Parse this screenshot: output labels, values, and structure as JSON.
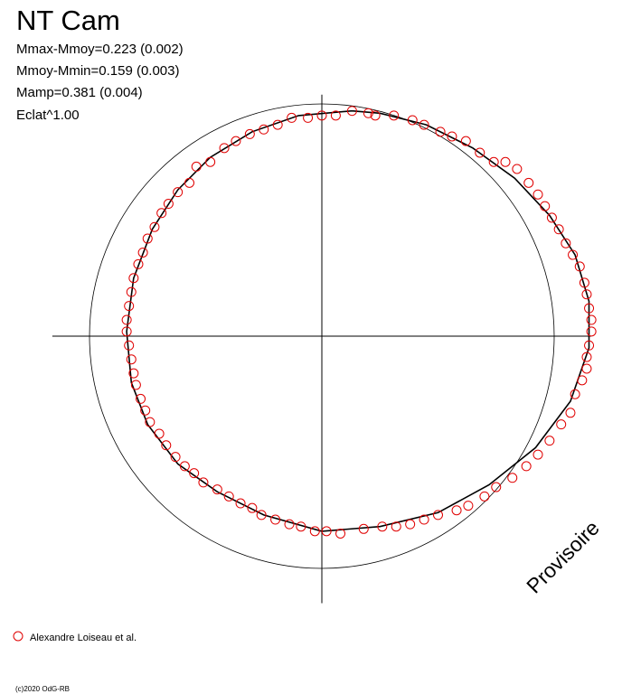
{
  "chart_data": {
    "type": "scatter",
    "title": "NT Cam",
    "annotations": [
      "Mmax-Mmoy=0.223 (0.002)",
      "Mmoy-Mmin=0.159 (0.003)",
      "Mamp=0.381 (0.004)",
      "Eclat^1.00"
    ],
    "watermark": "Provisoire",
    "footer": "(c)2020 OdG-RB",
    "xlim": [
      -1.16,
      1.16
    ],
    "ylim": [
      -1.15,
      1.04
    ],
    "reference_circle_radius": 1,
    "series": [
      {
        "name": "Alexandre Loiseau et al.",
        "color": "#e00000",
        "x": [
          0.13,
          0.06,
          0.0,
          -0.06,
          -0.13,
          -0.19,
          -0.25,
          -0.31,
          -0.37,
          -0.42,
          -0.48,
          -0.54,
          -0.57,
          -0.62,
          -0.66,
          -0.69,
          -0.72,
          -0.75,
          -0.77,
          -0.79,
          -0.81,
          -0.82,
          -0.83,
          -0.84,
          -0.84,
          -0.83,
          -0.82,
          -0.81,
          -0.8,
          -0.78,
          -0.76,
          -0.74,
          -0.7,
          -0.67,
          -0.63,
          -0.59,
          -0.55,
          -0.51,
          -0.45,
          -0.4,
          -0.35,
          -0.3,
          -0.26,
          -0.2,
          -0.14,
          -0.09,
          -0.03,
          0.02,
          0.08,
          0.18,
          0.26,
          0.32,
          0.38,
          0.44,
          0.5,
          0.58,
          0.63,
          0.7,
          0.75,
          0.82,
          0.88,
          0.93,
          0.98,
          1.03,
          1.07,
          1.09,
          1.12,
          1.14,
          1.14,
          1.15,
          1.16,
          1.16,
          1.15,
          1.14,
          1.13,
          1.11,
          1.08,
          1.05,
          1.02,
          0.99,
          0.96,
          0.93,
          0.89,
          0.84,
          0.79,
          0.74,
          0.68,
          0.62,
          0.56,
          0.51,
          0.44,
          0.39,
          0.31,
          0.23,
          0.2
        ],
        "y": [
          0.97,
          0.95,
          0.95,
          0.94,
          0.94,
          0.91,
          0.89,
          0.87,
          0.84,
          0.81,
          0.75,
          0.73,
          0.66,
          0.62,
          0.57,
          0.53,
          0.47,
          0.42,
          0.36,
          0.31,
          0.25,
          0.19,
          0.13,
          0.07,
          0.02,
          -0.04,
          -0.1,
          -0.16,
          -0.21,
          -0.27,
          -0.32,
          -0.37,
          -0.42,
          -0.47,
          -0.52,
          -0.56,
          -0.59,
          -0.63,
          -0.66,
          -0.69,
          -0.72,
          -0.74,
          -0.77,
          -0.79,
          -0.81,
          -0.82,
          -0.84,
          -0.84,
          -0.85,
          -0.83,
          -0.82,
          -0.82,
          -0.81,
          -0.79,
          -0.77,
          -0.75,
          -0.73,
          -0.69,
          -0.65,
          -0.61,
          -0.56,
          -0.51,
          -0.45,
          -0.38,
          -0.33,
          -0.25,
          -0.19,
          -0.14,
          -0.09,
          -0.04,
          0.02,
          0.07,
          0.12,
          0.18,
          0.23,
          0.3,
          0.35,
          0.4,
          0.46,
          0.51,
          0.56,
          0.61,
          0.66,
          0.72,
          0.75,
          0.75,
          0.79,
          0.84,
          0.86,
          0.88,
          0.91,
          0.93,
          0.95,
          0.95,
          0.96
        ]
      }
    ],
    "fit": {
      "color": "#000000",
      "x": [
        0.13,
        -0.1,
        -0.3,
        -0.48,
        -0.62,
        -0.73,
        -0.81,
        -0.84,
        -0.82,
        -0.75,
        -0.62,
        -0.45,
        -0.25,
        0.0,
        0.25,
        0.5,
        0.72,
        0.92,
        1.07,
        1.15,
        1.15,
        1.09,
        0.98,
        0.83,
        0.65,
        0.45,
        0.25,
        0.13
      ],
      "y": [
        0.97,
        0.95,
        0.88,
        0.77,
        0.63,
        0.46,
        0.25,
        0.02,
        -0.2,
        -0.38,
        -0.55,
        -0.67,
        -0.77,
        -0.84,
        -0.82,
        -0.76,
        -0.64,
        -0.48,
        -0.28,
        -0.05,
        0.15,
        0.35,
        0.52,
        0.68,
        0.81,
        0.91,
        0.96,
        0.97
      ]
    }
  }
}
